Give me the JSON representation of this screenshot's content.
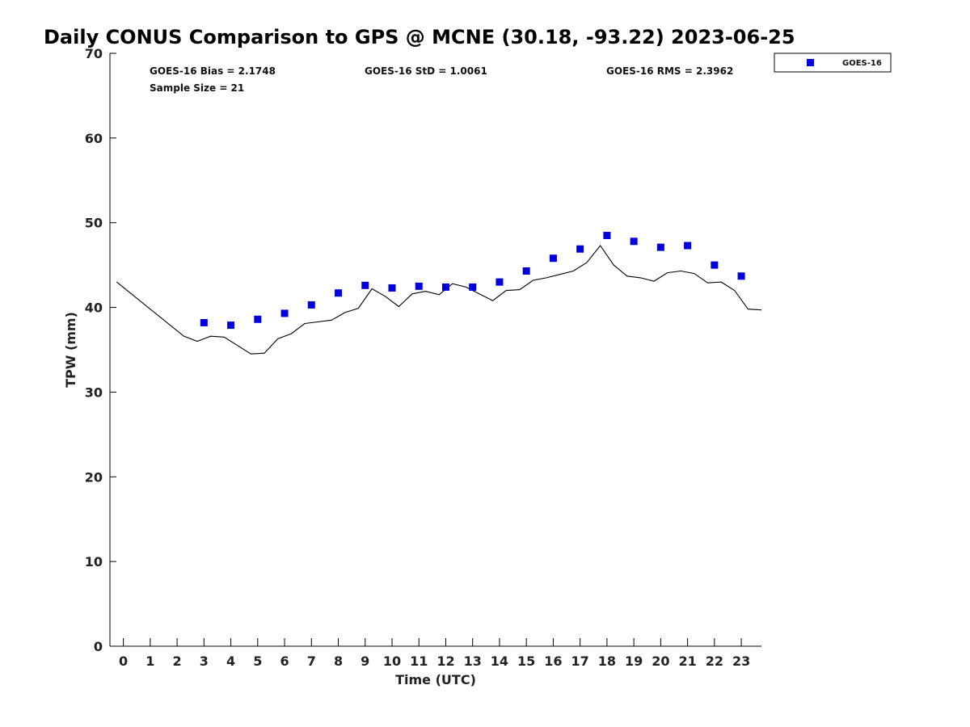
{
  "chart_data": {
    "type": "line",
    "title": "Daily CONUS Comparison to GPS @ MCNE (30.18, -93.22) 2023-06-25",
    "xlabel": "Time (UTC)",
    "ylabel": "TPW (mm)",
    "xlim": [
      -0.5,
      23.75
    ],
    "ylim": [
      0,
      70
    ],
    "x_ticks": [
      0,
      1,
      2,
      3,
      4,
      5,
      6,
      7,
      8,
      9,
      10,
      11,
      12,
      13,
      14,
      15,
      16,
      17,
      18,
      19,
      20,
      21,
      22,
      23
    ],
    "y_ticks": [
      0,
      10,
      20,
      30,
      40,
      50,
      60,
      70
    ],
    "stats": {
      "bias": "GOES-16 Bias = 2.1748",
      "std": "GOES-16 StD = 1.0061",
      "rms": "GOES-16 RMS = 2.3962",
      "sample": "Sample Size = 21"
    },
    "legend": {
      "position": "top-right-outside",
      "entries": [
        "GOES-16"
      ]
    },
    "colors": {
      "goes": "#0000dd",
      "gps": "#000000"
    },
    "series": [
      {
        "name": "GOES-16",
        "style": "markers",
        "x": [
          3,
          4,
          5,
          6,
          7,
          8,
          9,
          10,
          11,
          12,
          13,
          14,
          15,
          16,
          17,
          18,
          19,
          20,
          21,
          22,
          23
        ],
        "y": [
          38.2,
          37.9,
          38.6,
          39.3,
          40.3,
          41.7,
          42.6,
          42.3,
          42.5,
          42.4,
          42.4,
          43.0,
          44.3,
          45.8,
          46.9,
          48.5,
          47.8,
          47.1,
          47.3,
          45.0,
          43.7
        ]
      },
      {
        "style": "line",
        "x": [
          -0.25,
          2.25,
          2.75,
          3.25,
          3.75,
          4.75,
          5.25,
          5.75,
          6.25,
          6.75,
          7.75,
          8.25,
          8.75,
          9.25,
          9.75,
          10.25,
          10.75,
          11.25,
          11.75,
          12.25,
          12.75,
          13.75,
          14.25,
          14.75,
          15.25,
          15.75,
          16.25,
          16.75,
          17.25,
          17.75,
          18.25,
          18.75,
          19.25,
          19.75,
          20.25,
          20.75,
          21.25,
          21.75,
          22.25,
          22.75,
          23.25,
          23.75
        ],
        "y": [
          43.0,
          36.6,
          36.0,
          36.6,
          36.5,
          34.5,
          34.6,
          36.3,
          36.9,
          38.1,
          38.5,
          39.4,
          39.9,
          42.2,
          41.3,
          40.1,
          41.6,
          41.9,
          41.5,
          42.8,
          42.4,
          40.8,
          42.0,
          42.1,
          43.2,
          43.5,
          43.9,
          44.3,
          45.3,
          47.3,
          45.0,
          43.7,
          43.5,
          43.1,
          44.1,
          44.3,
          44.0,
          42.9,
          43.0,
          42.0,
          39.8,
          39.7
        ]
      }
    ]
  }
}
